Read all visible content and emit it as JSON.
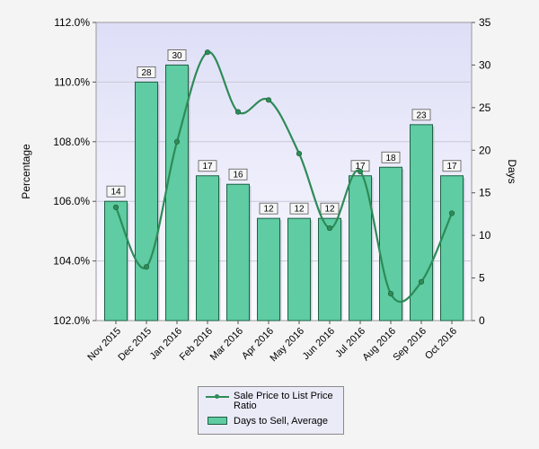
{
  "chart_data": {
    "type": "bar",
    "categories": [
      "Nov 2015",
      "Dec 2015",
      "Jan 2016",
      "Feb 2016",
      "Mar 2016",
      "Apr 2016",
      "May 2016",
      "Jun 2016",
      "Jul 2016",
      "Aug 2016",
      "Sep 2016",
      "Oct 2016"
    ],
    "series": [
      {
        "name": "Days to Sell, Average",
        "kind": "bar",
        "axis": "right",
        "values": [
          14,
          28,
          30,
          17,
          16,
          12,
          12,
          12,
          17,
          18,
          23,
          17
        ],
        "labels": [
          "14",
          "28",
          "30",
          "17",
          "16",
          "12",
          "12",
          "12",
          "17",
          "18",
          "23",
          "17"
        ]
      },
      {
        "name": "Sale Price to List Price Ratio",
        "kind": "line",
        "axis": "left",
        "values": [
          105.8,
          103.8,
          108.0,
          111.0,
          109.0,
          109.4,
          107.6,
          105.1,
          107.0,
          102.9,
          103.3,
          105.6
        ]
      }
    ],
    "ylabel": "Percentage",
    "y2label": "Days",
    "ylim": [
      102,
      112
    ],
    "y2lim": [
      0,
      35
    ],
    "yticks": [
      "102.0%",
      "104.0%",
      "106.0%",
      "108.0%",
      "110.0%",
      "112.0%"
    ],
    "y2ticks": [
      "0",
      "5",
      "10",
      "15",
      "20",
      "25",
      "30",
      "35"
    ],
    "grid": true,
    "legend_position": "bottom-center",
    "colors": {
      "bar_fill": "#5fcca3",
      "bar_stroke": "#1f5f43",
      "line": "#2e8b57",
      "plot_bg_top": "#dedef7",
      "plot_bg_bottom": "#fbfbff"
    }
  },
  "legend": {
    "line_label": "Sale Price to List Price Ratio",
    "bar_label": "Days to Sell, Average"
  }
}
